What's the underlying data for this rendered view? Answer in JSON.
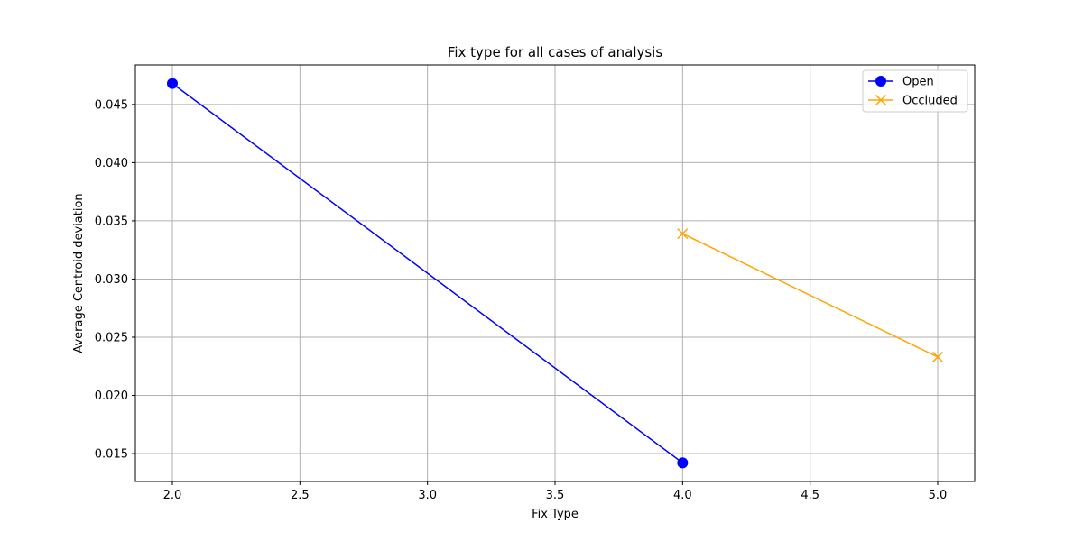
{
  "chart_data": {
    "type": "line",
    "title": "Fix type for all cases of analysis",
    "xlabel": "Fix Type",
    "ylabel": "Average Centroid deviation",
    "xlim": [
      1.855,
      5.145
    ],
    "ylim": [
      0.0126,
      0.0484
    ],
    "xticks": [
      2.0,
      2.5,
      3.0,
      3.5,
      4.0,
      4.5,
      5.0
    ],
    "xtick_labels": [
      "2.0",
      "2.5",
      "3.0",
      "3.5",
      "4.0",
      "4.5",
      "5.0"
    ],
    "yticks": [
      0.015,
      0.02,
      0.025,
      0.03,
      0.035,
      0.04,
      0.045
    ],
    "ytick_labels": [
      "0.015",
      "0.020",
      "0.025",
      "0.030",
      "0.035",
      "0.040",
      "0.045"
    ],
    "grid": true,
    "legend_position": "top-right",
    "series": [
      {
        "name": "Open",
        "color": "#0000ff",
        "marker": "circle",
        "x": [
          2.0,
          4.0
        ],
        "y": [
          0.0468,
          0.0142
        ]
      },
      {
        "name": "Occluded",
        "color": "#ffa500",
        "marker": "x",
        "x": [
          4.0,
          5.0
        ],
        "y": [
          0.0339,
          0.0233
        ]
      }
    ]
  }
}
